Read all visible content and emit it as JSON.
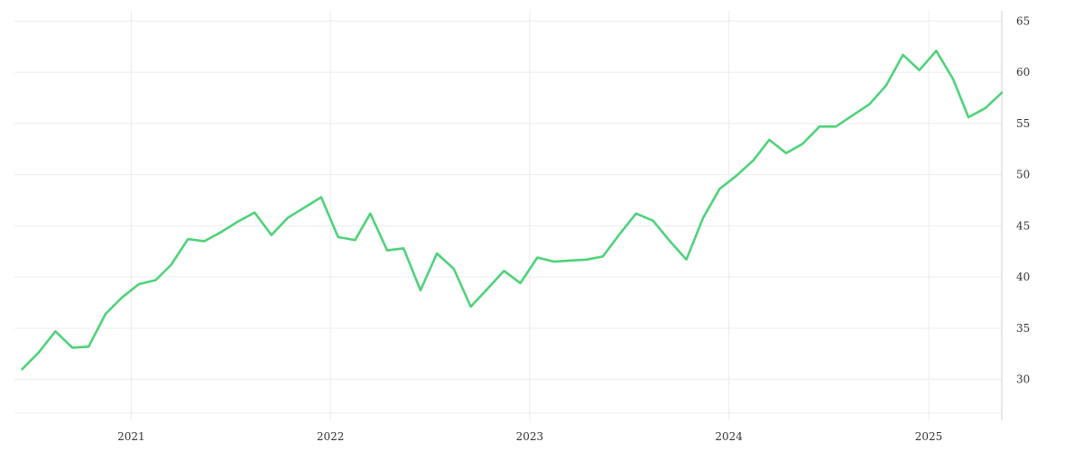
{
  "chart_data": {
    "type": "line",
    "title": "",
    "xlabel": "",
    "ylabel": "",
    "x_ticks": [
      "2021",
      "2022",
      "2023",
      "2024",
      "2025"
    ],
    "y_ticks": [
      30,
      35,
      40,
      45,
      50,
      55,
      60,
      65
    ],
    "ylim": [
      26,
      66
    ],
    "xlim": [
      "2020-06-01",
      "2025-05-15"
    ],
    "y_axis_position": "right",
    "grid": true,
    "legend": "none",
    "series": [
      {
        "color": "#4fd27a",
        "points": [
          [
            "2020-06-15",
            31.0
          ],
          [
            "2020-07-15",
            32.6
          ],
          [
            "2020-08-15",
            34.7
          ],
          [
            "2020-09-15",
            33.1
          ],
          [
            "2020-10-15",
            33.2
          ],
          [
            "2020-11-15",
            36.4
          ],
          [
            "2020-12-15",
            38.0
          ],
          [
            "2021-01-15",
            39.3
          ],
          [
            "2021-02-15",
            39.7
          ],
          [
            "2021-03-15",
            41.2
          ],
          [
            "2021-04-15",
            43.7
          ],
          [
            "2021-05-15",
            43.5
          ],
          [
            "2021-06-15",
            44.4
          ],
          [
            "2021-07-15",
            45.4
          ],
          [
            "2021-08-15",
            46.3
          ],
          [
            "2021-09-15",
            44.1
          ],
          [
            "2021-10-15",
            45.8
          ],
          [
            "2021-11-15",
            46.8
          ],
          [
            "2021-12-15",
            47.8
          ],
          [
            "2022-01-15",
            43.9
          ],
          [
            "2022-02-15",
            43.6
          ],
          [
            "2022-03-15",
            46.2
          ],
          [
            "2022-04-15",
            42.6
          ],
          [
            "2022-05-15",
            42.8
          ],
          [
            "2022-06-15",
            38.7
          ],
          [
            "2022-07-15",
            42.3
          ],
          [
            "2022-08-15",
            40.8
          ],
          [
            "2022-09-15",
            37.1
          ],
          [
            "2022-10-15",
            38.8
          ],
          [
            "2022-11-15",
            40.6
          ],
          [
            "2022-12-15",
            39.4
          ],
          [
            "2023-01-15",
            41.9
          ],
          [
            "2023-02-15",
            41.5
          ],
          [
            "2023-03-15",
            41.6
          ],
          [
            "2023-04-15",
            41.7
          ],
          [
            "2023-05-15",
            42.0
          ],
          [
            "2023-06-15",
            44.2
          ],
          [
            "2023-07-15",
            46.2
          ],
          [
            "2023-08-15",
            45.5
          ],
          [
            "2023-09-15",
            43.5
          ],
          [
            "2023-10-15",
            41.7
          ],
          [
            "2023-11-15",
            45.8
          ],
          [
            "2023-12-15",
            48.6
          ],
          [
            "2024-01-15",
            49.9
          ],
          [
            "2024-02-15",
            51.4
          ],
          [
            "2024-03-15",
            53.4
          ],
          [
            "2024-04-15",
            52.1
          ],
          [
            "2024-05-15",
            53.0
          ],
          [
            "2024-06-15",
            54.7
          ],
          [
            "2024-07-15",
            54.7
          ],
          [
            "2024-08-15",
            55.8
          ],
          [
            "2024-09-15",
            56.9
          ],
          [
            "2024-10-15",
            58.7
          ],
          [
            "2024-11-15",
            61.7
          ],
          [
            "2024-12-15",
            60.2
          ],
          [
            "2025-01-15",
            62.1
          ],
          [
            "2025-02-15",
            59.3
          ],
          [
            "2025-03-15",
            55.6
          ],
          [
            "2025-04-15",
            56.5
          ],
          [
            "2025-05-15",
            58.0
          ]
        ]
      }
    ]
  }
}
